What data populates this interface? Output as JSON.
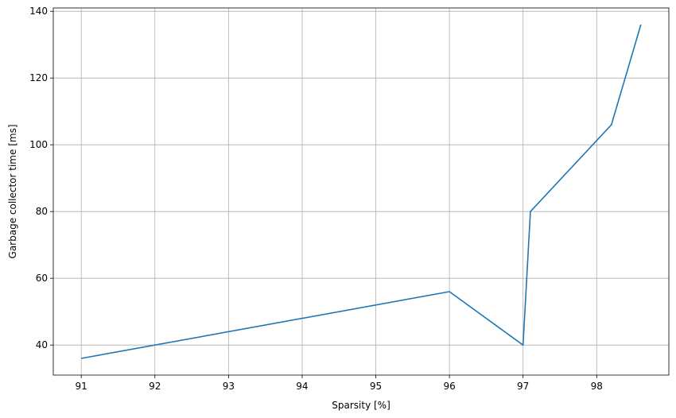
{
  "chart_data": {
    "type": "line",
    "title": "",
    "xlabel": "Sparsity [%]",
    "ylabel": "Garbage collector time [ms]",
    "xlim": [
      90.62,
      98.98
    ],
    "ylim": [
      31,
      141
    ],
    "xticks": [
      91,
      92,
      93,
      94,
      95,
      96,
      97,
      98
    ],
    "yticks": [
      40,
      60,
      80,
      100,
      120,
      140
    ],
    "xtick_labels": [
      "91",
      "92",
      "93",
      "94",
      "95",
      "96",
      "97",
      "98"
    ],
    "ytick_labels": [
      "40",
      "60",
      "80",
      "100",
      "120",
      "140"
    ],
    "grid": true,
    "legend": "none",
    "series": [
      {
        "color": "#1f77b4",
        "x": [
          91.0,
          96.0,
          97.0,
          97.1,
          98.2,
          98.6
        ],
        "y": [
          36,
          56,
          40,
          80,
          106,
          136
        ]
      }
    ]
  }
}
